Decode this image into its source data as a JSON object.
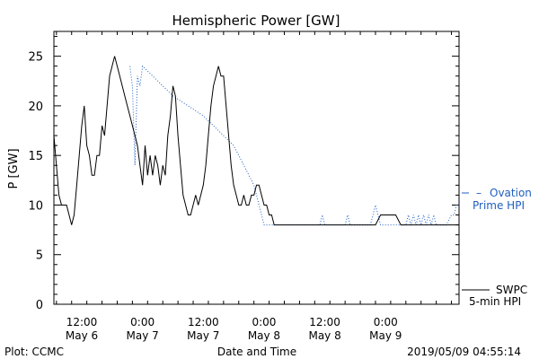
{
  "chart_data": {
    "type": "line",
    "title": "Hemispheric Power [GW]",
    "xlabel": "Date and Time",
    "ylabel": "P [GW]",
    "ylim": [
      0,
      27.5
    ],
    "xlim_hours": [
      6.5,
      86.5
    ],
    "y_ticks": [
      0,
      5,
      10,
      15,
      20,
      25
    ],
    "x_ticks": [
      {
        "hour": 12,
        "time": "12:00",
        "date": "May 6"
      },
      {
        "hour": 24,
        "time": "0:00",
        "date": "May 7"
      },
      {
        "hour": 36,
        "time": "12:00",
        "date": "May 7"
      },
      {
        "hour": 48,
        "time": "0:00",
        "date": "May 8"
      },
      {
        "hour": 60,
        "time": "12:00",
        "date": "May 8"
      },
      {
        "hour": 72,
        "time": "0:00",
        "date": "May 9"
      }
    ],
    "series": [
      {
        "name": "SWPC",
        "name_line2": "5-min HPI",
        "color": "#000000",
        "style": "solid",
        "x": [
          6.5,
          7.0,
          7.5,
          8.0,
          8.5,
          9.0,
          9.5,
          10.0,
          10.5,
          11.0,
          11.5,
          12.0,
          12.5,
          13.0,
          13.5,
          14.0,
          14.5,
          15.0,
          15.5,
          16.0,
          16.5,
          17.0,
          17.5,
          18.0,
          18.5,
          19.0,
          19.5,
          20.0,
          20.5,
          21.0,
          21.5,
          22.0,
          22.5,
          23.0,
          23.5,
          24.0,
          24.5,
          25.0,
          25.5,
          26.0,
          26.5,
          27.0,
          27.5,
          28.0,
          28.5,
          29.0,
          29.5,
          30.0,
          30.5,
          31.0,
          31.5,
          32.0,
          32.5,
          33.0,
          33.5,
          34.0,
          34.5,
          35.0,
          35.5,
          36.0,
          36.5,
          37.0,
          37.5,
          38.0,
          38.5,
          39.0,
          39.5,
          40.0,
          40.5,
          41.0,
          41.5,
          42.0,
          42.5,
          43.0,
          43.5,
          44.0,
          44.5,
          45.0,
          45.5,
          46.0,
          46.5,
          47.0,
          47.5,
          48.0,
          48.5,
          49.0,
          49.5,
          50.0,
          50.5,
          51.0,
          51.5,
          52.0,
          54.0,
          58.0,
          62.0,
          66.0,
          70.0,
          71.0,
          72.0,
          73.0,
          74.0,
          75.0,
          76.0,
          80.0,
          84.0,
          86.5
        ],
        "y": [
          17,
          14,
          11,
          10,
          10,
          10,
          9,
          8,
          9,
          12,
          15,
          18,
          20,
          16,
          15,
          13,
          13,
          15,
          15,
          18,
          17,
          20,
          23,
          24,
          25,
          24,
          23,
          22,
          21,
          20,
          19,
          18,
          17,
          16,
          14,
          12,
          16,
          13,
          15,
          13,
          15,
          14,
          12,
          14,
          13,
          17,
          19,
          22,
          21,
          17,
          14,
          11,
          10,
          9,
          9,
          10,
          11,
          10,
          11,
          12,
          14,
          17,
          20,
          22,
          23,
          24,
          23,
          23,
          20,
          17,
          14,
          12,
          11,
          10,
          10,
          11,
          10,
          10,
          11,
          11,
          12,
          12,
          11,
          10,
          10,
          9,
          9,
          8,
          8,
          8,
          8,
          8,
          8,
          8,
          8,
          8,
          8,
          9,
          9,
          9,
          9,
          8,
          8,
          8,
          8,
          8
        ]
      },
      {
        "name": "Ovation",
        "name_line2": "Prime HPI",
        "color": "#1f5fbf",
        "style": "dotted",
        "x": [
          21.5,
          22.0,
          22.5,
          23.0,
          23.5,
          24.0,
          30.0,
          36.0,
          42.0,
          46.0,
          48.0,
          50.0,
          52.0,
          54.0,
          58.0,
          59.0,
          59.5,
          60.0,
          63.0,
          64.0,
          64.5,
          65.0,
          69.0,
          69.5,
          70.0,
          70.5,
          71.0,
          76.0,
          76.5,
          77.0,
          77.5,
          78.0,
          78.5,
          79.0,
          79.5,
          80.0,
          80.5,
          81.0,
          81.5,
          82.0,
          84.0,
          85.0,
          85.5,
          86.0,
          86.5
        ],
        "y": [
          24,
          22,
          14,
          23,
          22,
          24,
          21,
          19,
          16,
          12,
          8,
          8,
          8,
          8,
          8,
          8,
          9,
          8,
          8,
          8,
          9,
          8,
          8,
          9,
          10,
          9,
          8,
          8,
          9,
          8,
          9,
          8,
          9,
          8,
          9,
          8,
          9,
          8,
          9,
          8,
          8,
          9,
          9,
          10,
          10
        ]
      }
    ],
    "footer_left": "Plot: CCMC",
    "footer_right": "2019/05/09 04:55:14"
  }
}
